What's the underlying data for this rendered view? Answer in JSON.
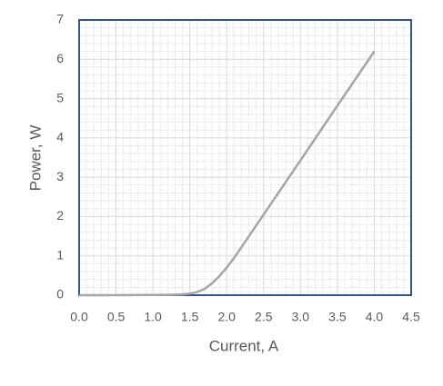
{
  "chart_data": {
    "type": "line",
    "xlabel": "Current, A",
    "ylabel": "Power, W",
    "x": [
      0,
      0.5,
      1.0,
      1.2,
      1.4,
      1.5,
      1.6,
      1.7,
      1.8,
      1.9,
      2.0,
      2.1,
      2.2,
      2.5,
      3.0,
      3.5,
      4.0
    ],
    "series": [
      {
        "color": "#a5a5a5",
        "values": [
          0,
          0,
          0.005,
          0.01,
          0.02,
          0.04,
          0.08,
          0.16,
          0.3,
          0.48,
          0.7,
          0.95,
          1.22,
          2.05,
          3.43,
          4.82,
          6.2
        ]
      }
    ],
    "xlim": [
      0,
      4.5
    ],
    "xticks": [
      {
        "value": 0,
        "label": "0.0"
      },
      0.5,
      {
        "value": 1,
        "label": "1.0"
      },
      1.5,
      {
        "value": 2,
        "label": "2.0"
      },
      2.5,
      {
        "value": 3,
        "label": "3.0"
      },
      3.5,
      {
        "value": 4,
        "label": "4.0"
      },
      4.5
    ],
    "ylim": [
      0,
      7
    ],
    "yticks": [
      0,
      1,
      2,
      3,
      4,
      5,
      6,
      7
    ],
    "grid": true,
    "minor_grid": true,
    "frame_color": "#2f5597"
  }
}
